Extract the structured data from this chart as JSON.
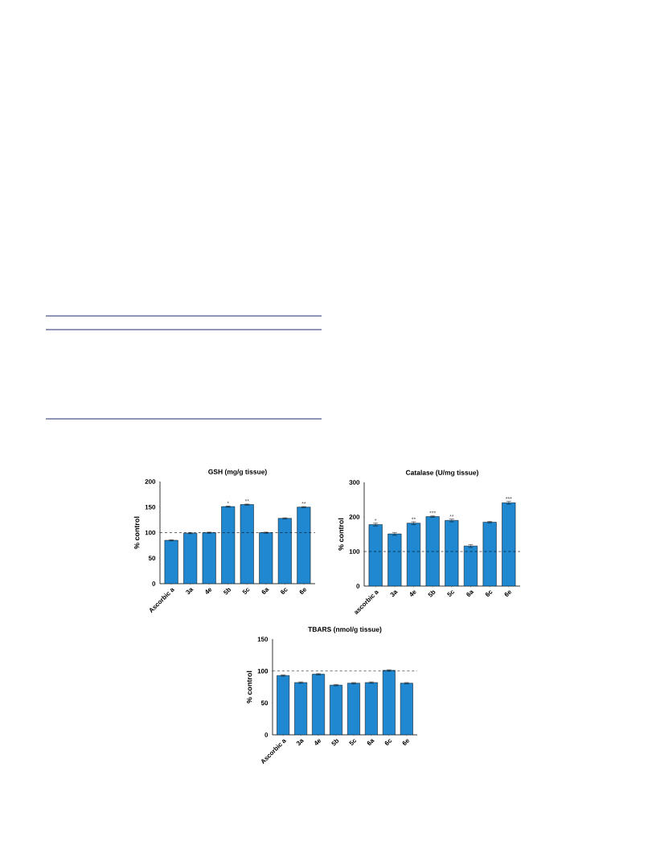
{
  "chart_data": [
    {
      "type": "bar",
      "title": "GSH (mg/g tissue)",
      "ylabel": "% control",
      "categories": [
        "Ascorbic a",
        "3a",
        "4e",
        "5b",
        "5c",
        "6a",
        "6c",
        "6e"
      ],
      "values": [
        85,
        99,
        100,
        151,
        155,
        100,
        128,
        150
      ],
      "errors": [
        1,
        1,
        1,
        1,
        1,
        1,
        1,
        1
      ],
      "color": "#1f88d0",
      "ylim": [
        0,
        200
      ],
      "yticks": [
        0,
        50,
        100,
        150,
        200
      ],
      "grid": false,
      "ref_lines": [
        {
          "axis": "y",
          "value": 100,
          "line_style": "dashed"
        }
      ],
      "annotations": [
        {
          "text": "*",
          "x": "5b",
          "y": 152
        },
        {
          "text": "**",
          "x": "5c",
          "y": 156
        },
        {
          "text": "**",
          "x": "6e",
          "y": 151
        }
      ]
    },
    {
      "type": "bar",
      "title": "Catalase (U/mg tissue)",
      "ylabel": "% control",
      "categories": [
        "ascorbic a",
        "3a",
        "4e",
        "5b",
        "5c",
        "6a",
        "6c",
        "6e"
      ],
      "values": [
        178,
        151,
        182,
        201,
        190,
        116,
        185,
        241
      ],
      "errors": [
        4,
        4,
        4,
        2,
        4,
        4,
        2,
        4
      ],
      "color": "#1f88d0",
      "ylim": [
        0,
        300
      ],
      "yticks": [
        0,
        100,
        200,
        300
      ],
      "grid": false,
      "ref_lines": [
        {
          "axis": "y",
          "value": 100,
          "line_style": "dashed"
        }
      ],
      "annotations": [
        {
          "text": "*",
          "x": "ascorbic a",
          "y": 181
        },
        {
          "text": "**",
          "x": "4e",
          "y": 185
        },
        {
          "text": "***",
          "x": "5b",
          "y": 203
        },
        {
          "text": "**",
          "x": "5c",
          "y": 193
        },
        {
          "text": "***",
          "x": "6e",
          "y": 244
        }
      ]
    },
    {
      "type": "bar",
      "title": "TBARS (nmol/g tissue)",
      "ylabel": "% control",
      "categories": [
        "Ascorbic a",
        "3a",
        "4e",
        "5b",
        "5c",
        "6a",
        "6c",
        "6e"
      ],
      "values": [
        93,
        82,
        95,
        78,
        81,
        82,
        101,
        81
      ],
      "errors": [
        1,
        1,
        1,
        1,
        1,
        1,
        1,
        1
      ],
      "color": "#1f88d0",
      "ylim": [
        0,
        150
      ],
      "yticks": [
        0,
        50,
        100,
        150
      ],
      "grid": false,
      "ref_lines": [
        {
          "axis": "y",
          "value": 100,
          "line_style": "dashed"
        }
      ]
    }
  ]
}
